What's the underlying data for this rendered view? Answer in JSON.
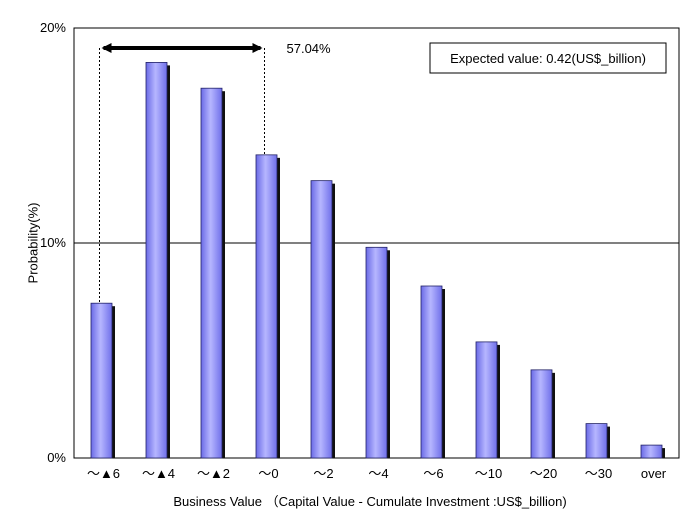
{
  "chart_data": {
    "type": "bar",
    "categories": [
      "～▲6",
      "～▲4",
      "～▲2",
      "～0",
      "～2",
      "～4",
      "～6",
      "～10",
      "～20",
      "～30",
      "over"
    ],
    "values": [
      7.2,
      18.4,
      17.2,
      14.1,
      12.9,
      9.8,
      8.0,
      5.4,
      4.1,
      1.6,
      0.6
    ],
    "ylabel": "Probability(%)",
    "xlabel": "Business Value （Capital Value - Cumulate Investment :US$_billion)",
    "ylim": [
      0,
      20
    ],
    "yticks": [
      0,
      10,
      20
    ],
    "ytick_labels": [
      "0%",
      "10%",
      "20%"
    ],
    "grid": "horizontal line at 10%",
    "colors": {
      "bar": "#8080f0",
      "bar_shadow": "#111111",
      "bar_outline": "#222266"
    },
    "annotations": {
      "range_label": "57.04%",
      "range_from_category": "～▲6",
      "range_to_category": "～0",
      "expected_value_box": "Expected value: 0.42(US$_billion)"
    }
  }
}
